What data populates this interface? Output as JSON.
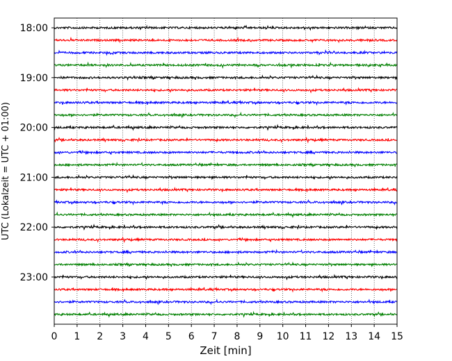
{
  "chart_data": {
    "type": "line",
    "xlabel": "Zeit  [min]",
    "ylabel": "UTC (Lokalzeit = UTC + 01:00)",
    "xlim": [
      0,
      15
    ],
    "xticks": [
      "0",
      "1",
      "2",
      "3",
      "4",
      "5",
      "6",
      "7",
      "8",
      "9",
      "10",
      "11",
      "12",
      "13",
      "14",
      "15"
    ],
    "yticks": [
      "18:00",
      "19:00",
      "20:00",
      "21:00",
      "22:00",
      "23:00"
    ],
    "row_interval_minutes": 15,
    "first_row": "18:00",
    "rows": 24,
    "row_colors": [
      "#000000",
      "#ff0000",
      "#0000ff",
      "#008000"
    ],
    "grid": "vertical dotted lines at each minute"
  }
}
